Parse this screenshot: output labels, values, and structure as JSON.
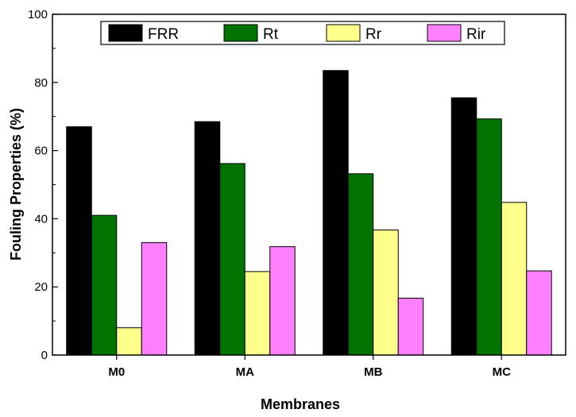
{
  "chart_data": {
    "type": "bar",
    "categories": [
      "M0",
      "MA",
      "MB",
      "MC"
    ],
    "series": [
      {
        "name": "FRR",
        "color": "#000000",
        "values": [
          67.0,
          68.5,
          83.5,
          75.5
        ]
      },
      {
        "name": "Rt",
        "color": "#007300",
        "values": [
          41.0,
          56.2,
          53.2,
          69.3
        ]
      },
      {
        "name": "Rr",
        "color": "#ffff8c",
        "values": [
          8.0,
          24.5,
          36.7,
          44.8
        ]
      },
      {
        "name": "Rir",
        "color": "#ff80ff",
        "values": [
          33.0,
          31.8,
          16.7,
          24.7
        ]
      }
    ],
    "xlabel": "Membranes",
    "ylabel": "Fouling Properties (%)",
    "ylim": [
      0,
      100
    ],
    "yticks": [
      "0",
      "20",
      "40",
      "60",
      "80",
      "100"
    ],
    "grid": false,
    "legend_position": "top"
  }
}
